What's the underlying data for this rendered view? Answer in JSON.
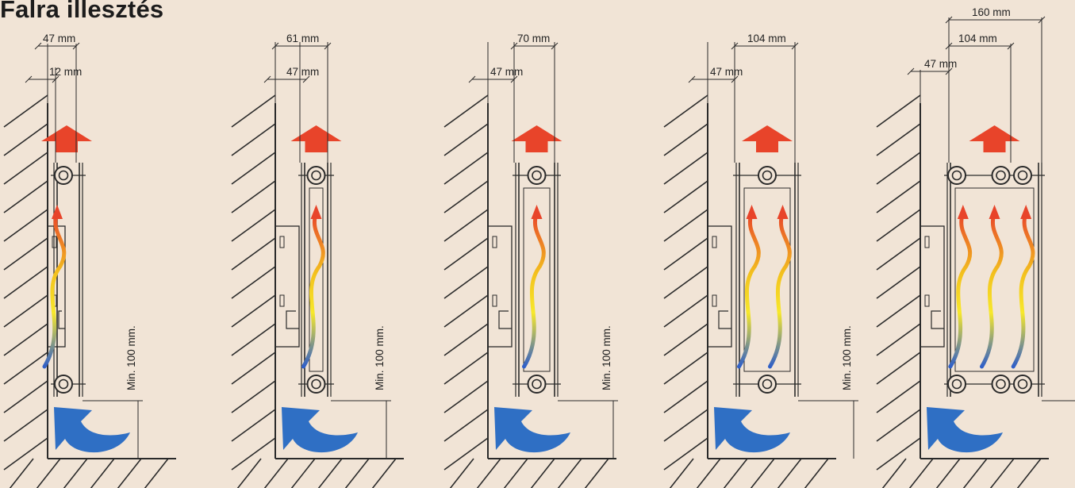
{
  "title": "Falra illesztés",
  "colors": {
    "background": "#f1e4d6",
    "hot_arrow": "#e8442a",
    "cold_arrow": "#2f6fc4",
    "gradient_hot": "#e8442a",
    "gradient_mid": "#f3c21e",
    "gradient_warm": "#f7e82b",
    "gradient_cold": "#2f5fc8"
  },
  "diagrams": [
    {
      "id": "panel-1",
      "panels": 1,
      "dimensions": [
        "47 mm",
        "12 mm"
      ],
      "clearance_label": "Min. 100 mm."
    },
    {
      "id": "panel-2",
      "panels": 1,
      "dimensions": [
        "61 mm",
        "47 mm"
      ],
      "clearance_label": "Min. 100 mm."
    },
    {
      "id": "panel-3",
      "panels": 1,
      "dimensions": [
        "70 mm",
        "47 mm"
      ],
      "clearance_label": "Min. 100 mm."
    },
    {
      "id": "panel-4",
      "panels": 2,
      "dimensions": [
        "104 mm",
        "47 mm"
      ],
      "clearance_label": "Min. 100 mm."
    },
    {
      "id": "panel-5",
      "panels": 3,
      "dimensions": [
        "160 mm",
        "104 mm",
        "47 mm"
      ],
      "clearance_label": "Min. 100 mm."
    }
  ]
}
